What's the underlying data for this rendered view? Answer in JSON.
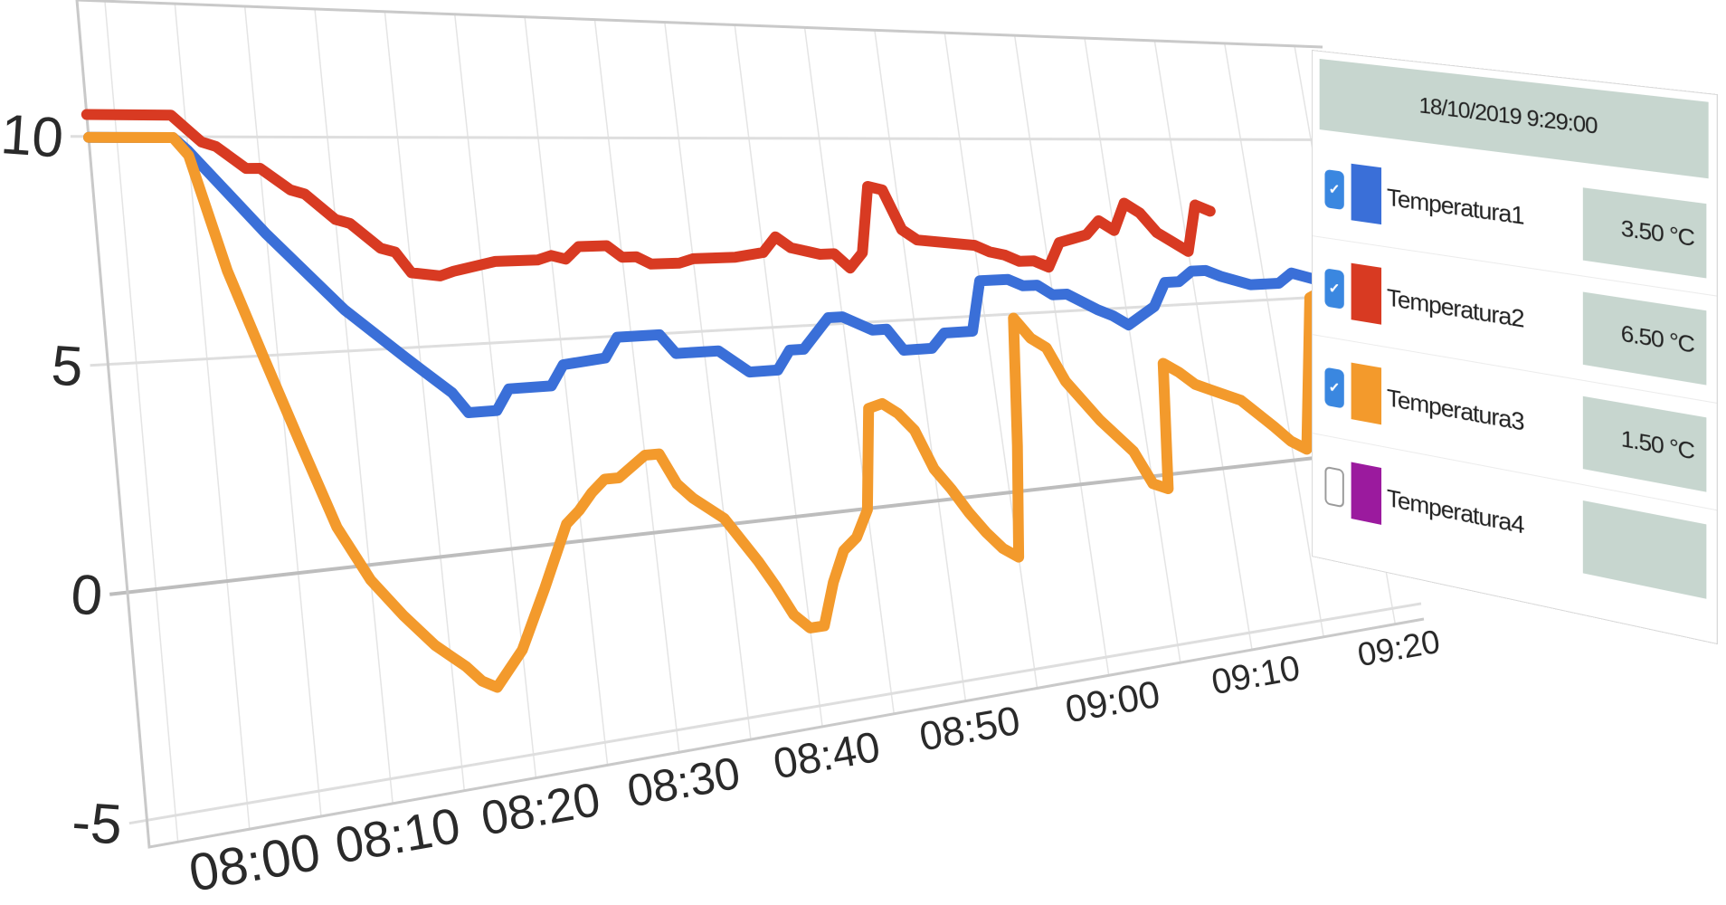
{
  "chart_data": {
    "type": "line",
    "x_tick_labels": [
      "08:00",
      "08:10",
      "08:20",
      "08:30",
      "08:40",
      "08:50",
      "09:00",
      "09:10",
      "09:20"
    ],
    "y_tick_labels": [
      "10",
      "5",
      "0",
      "-5"
    ],
    "ylim": [
      -5.5,
      13
    ],
    "grid": true,
    "legend_position": "right",
    "series": [
      {
        "name": "Temperatura1",
        "color": "#3a6fd8",
        "x": [
          "07:53",
          "07:59",
          "08:00",
          "08:05",
          "08:10",
          "08:14",
          "08:15",
          "08:17",
          "08:18",
          "08:20",
          "08:21",
          "08:24",
          "08:25",
          "08:28",
          "08:29",
          "08:32",
          "08:33",
          "08:36",
          "08:38",
          "08:40",
          "08:41",
          "08:42",
          "08:44",
          "08:45",
          "08:47",
          "08:48",
          "08:49",
          "08:51",
          "08:52",
          "08:54",
          "08:55",
          "08:57",
          "08:58",
          "08:59",
          "09:00",
          "09:01",
          "09:03",
          "09:04",
          "09:05",
          "09:07",
          "09:08",
          "09:09",
          "09:10",
          "09:11",
          "09:12",
          "09:14",
          "09:16",
          "09:17",
          "09:19"
        ],
        "values": [
          10,
          10,
          9.7,
          7.8,
          6.0,
          4.8,
          4.5,
          3.9,
          3.4,
          3.4,
          3.9,
          3.9,
          4.4,
          4.5,
          5.0,
          5.0,
          4.5,
          4.5,
          3.9,
          3.9,
          4.4,
          4.4,
          5.2,
          5.2,
          4.8,
          4.8,
          4.2,
          4.2,
          4.6,
          4.6,
          6.0,
          6.0,
          5.8,
          5.8,
          5.5,
          5.5,
          5.0,
          4.8,
          4.5,
          5.0,
          5.7,
          5.7,
          6.0,
          6.0,
          5.8,
          5.5,
          5.5,
          5.8,
          5.5
        ]
      },
      {
        "name": "Temperatura2",
        "color": "#d83a22",
        "x": [
          "07:53",
          "07:59",
          "08:00",
          "08:01",
          "08:02",
          "08:04",
          "08:05",
          "08:07",
          "08:08",
          "08:10",
          "08:11",
          "08:13",
          "08:14",
          "08:15",
          "08:17",
          "08:18",
          "08:21",
          "08:24",
          "08:25",
          "08:26",
          "08:27",
          "08:29",
          "08:30",
          "08:31",
          "08:32",
          "08:34",
          "08:35",
          "08:38",
          "08:40",
          "08:41",
          "08:42",
          "08:43",
          "08:44",
          "08:45",
          "08:46",
          "08:47",
          "08:48",
          "08:49",
          "08:50",
          "08:51",
          "08:55",
          "08:56",
          "08:57",
          "08:58",
          "08:59",
          "09:00",
          "09:01",
          "09:02",
          "09:03",
          "09:04",
          "09:05",
          "09:06",
          "09:07",
          "09:08",
          "09:10",
          "09:11",
          "09:12"
        ],
        "values": [
          10.5,
          10.5,
          10.2,
          9.9,
          9.8,
          9.3,
          9.3,
          8.8,
          8.7,
          8.1,
          8.0,
          7.4,
          7.3,
          6.8,
          6.7,
          6.8,
          7.0,
          7.0,
          7.1,
          7.0,
          7.3,
          7.3,
          7.0,
          7.0,
          6.8,
          6.8,
          6.9,
          6.9,
          7.0,
          7.4,
          7.1,
          7.0,
          6.9,
          6.9,
          6.5,
          6.9,
          8.7,
          8.6,
          7.5,
          7.2,
          7.0,
          6.8,
          6.7,
          6.5,
          6.5,
          6.3,
          7.0,
          7.1,
          7.2,
          7.6,
          7.3,
          8.1,
          7.8,
          7.2,
          6.6,
          8.0,
          7.8
        ]
      },
      {
        "name": "Temperatura3",
        "color": "#f39a2c",
        "x": [
          "07:53",
          "07:59",
          "08:00",
          "08:02",
          "08:04",
          "08:06",
          "08:08",
          "08:10",
          "08:12",
          "08:14",
          "08:15",
          "08:16",
          "08:17",
          "08:18",
          "08:20",
          "08:22",
          "08:24",
          "08:25",
          "08:26",
          "08:27",
          "08:28",
          "08:30",
          "08:31",
          "08:32",
          "08:33",
          "08:35",
          "08:37",
          "08:38",
          "08:39",
          "08:40",
          "08:41",
          "08:42",
          "08:43",
          "08:44",
          "08:45",
          "08:46",
          "08:47",
          "08:48",
          "08:49",
          "08:50",
          "08:51",
          "08:52",
          "08:53",
          "08:54",
          "08:55",
          "08:56",
          "08:57",
          "08:58",
          "08:59",
          "09:00",
          "09:02",
          "09:04",
          "09:05",
          "09:06",
          "09:07",
          "09:08",
          "09:09",
          "09:10",
          "09:11",
          "09:12",
          "09:14",
          "09:15",
          "09:16",
          "09:18",
          "09:19",
          "09:20"
        ],
        "values": [
          10,
          10,
          9.6,
          7.0,
          5.0,
          3.0,
          1.0,
          -0.3,
          -1.2,
          -2.0,
          -2.3,
          -2.6,
          -3.0,
          -3.2,
          -2.4,
          -1.0,
          0.5,
          0.8,
          1.2,
          1.5,
          1.5,
          2.0,
          2.0,
          1.2,
          0.8,
          0.2,
          -1.0,
          -1.7,
          -2.5,
          -2.9,
          -2.9,
          -1.8,
          -1.0,
          -0.7,
          0.0,
          2.7,
          2.8,
          2.5,
          2.0,
          0.9,
          0.3,
          -0.4,
          -1.0,
          -1.5,
          -1.8,
          1.3,
          4.9,
          4.3,
          4.0,
          3.0,
          1.8,
          0.8,
          -0.2,
          -0.4,
          3.3,
          3.0,
          2.6,
          2.4,
          2.2,
          2.0,
          1.1,
          0.6,
          0.3,
          5.0,
          5.2,
          5.0
        ]
      }
    ],
    "legend": {
      "timestamp": "18/10/2019 9:29:00",
      "items": [
        {
          "name": "Temperatura1",
          "color": "#3a6fd8",
          "checked": true,
          "value": "3.50 °C"
        },
        {
          "name": "Temperatura2",
          "color": "#d83a22",
          "checked": true,
          "value": "6.50 °C"
        },
        {
          "name": "Temperatura3",
          "color": "#f39a2c",
          "checked": true,
          "value": "1.50 °C"
        },
        {
          "name": "Temperatura4",
          "color": "#9b1a9e",
          "checked": false,
          "value": ""
        }
      ]
    }
  }
}
